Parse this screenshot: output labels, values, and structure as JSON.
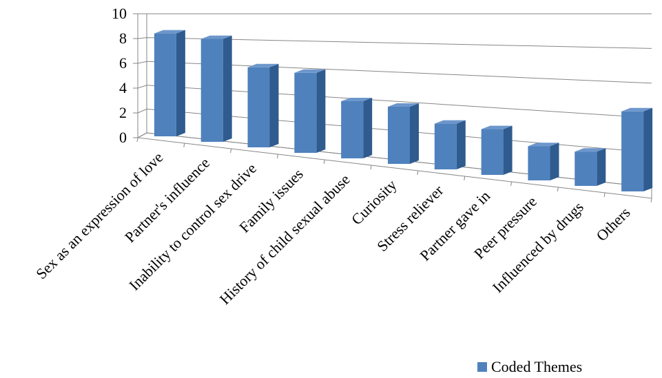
{
  "chart_data": {
    "type": "bar",
    "categories": [
      "Sex as an expression of love",
      "Partner's influence",
      "Inability to control sex drive",
      "Family issues",
      "History of child sexual abuse",
      "Curiosity",
      "Stress reliever",
      "Partner gave in",
      "Peer pressure",
      "Influenced by drugs",
      "Others"
    ],
    "series": [
      {
        "name": "Coded Themes",
        "values": [
          9,
          9,
          7,
          7,
          5,
          5,
          4,
          4,
          3,
          3,
          7
        ]
      }
    ],
    "yticks": [
      "0",
      "2",
      "4",
      "6",
      "8",
      "10"
    ],
    "ylim": [
      0,
      10
    ],
    "grid": true,
    "legend": "bottom-right",
    "colors": {
      "bar_front": "#4f81bd",
      "bar_side": "#2f5b8e",
      "bar_top": "#6d97cc",
      "grid": "#868686"
    }
  }
}
